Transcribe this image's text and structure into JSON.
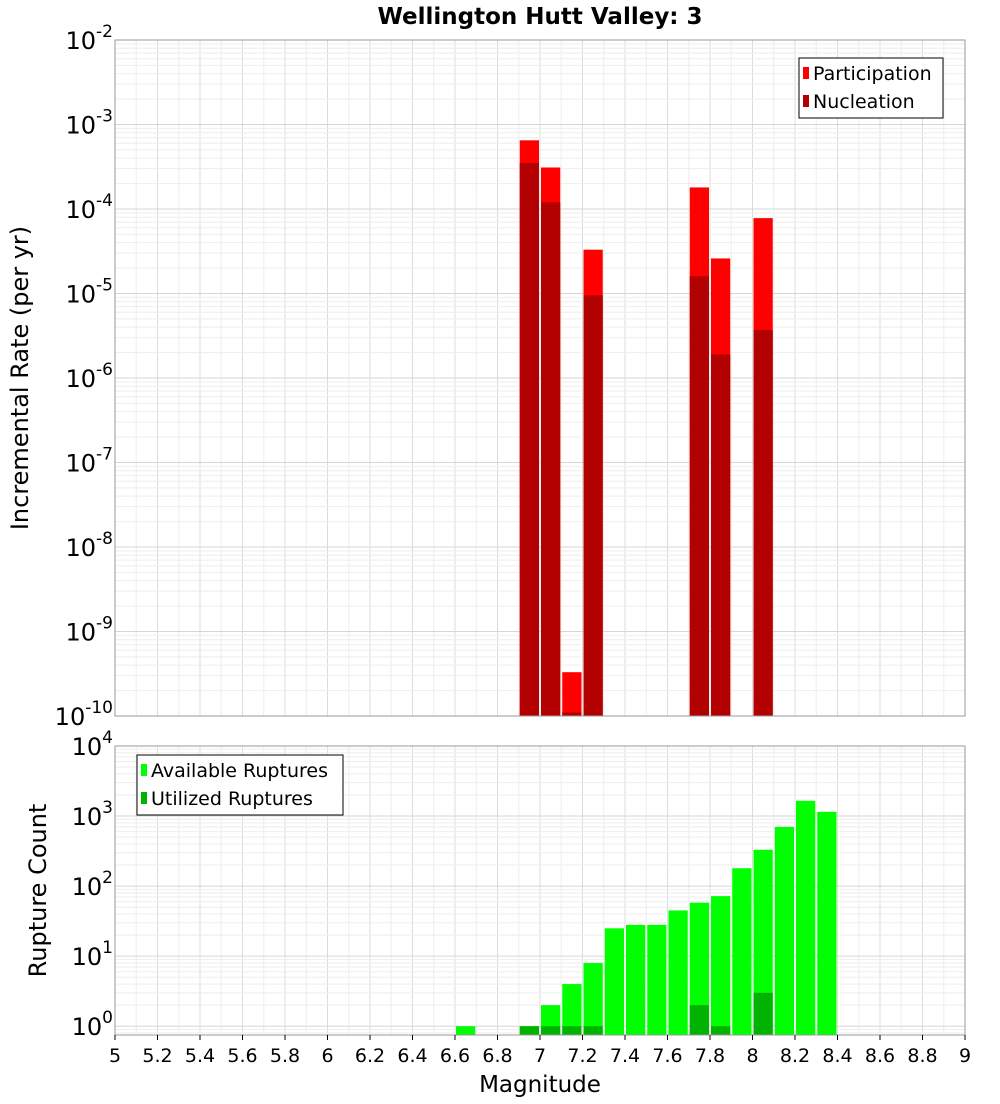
{
  "chart_data": [
    {
      "type": "bar",
      "title": "Wellington Hutt Valley: 3",
      "xlabel": "",
      "ylabel": "Incremental Rate (per yr)",
      "xlim": [
        5,
        9
      ],
      "ylim": [
        1e-10,
        0.01
      ],
      "yscale": "log",
      "grid": true,
      "legend_position": "top-right",
      "series": [
        {
          "name": "Participation",
          "color": "#ff0000",
          "points": [
            {
              "x": 6.95,
              "y": 0.00065
            },
            {
              "x": 7.05,
              "y": 0.00031
            },
            {
              "x": 7.15,
              "y": 3.3e-10
            },
            {
              "x": 7.25,
              "y": 3.3e-05
            },
            {
              "x": 7.75,
              "y": 0.00018
            },
            {
              "x": 7.85,
              "y": 2.6e-05
            },
            {
              "x": 8.05,
              "y": 7.8e-05
            }
          ]
        },
        {
          "name": "Nucleation",
          "color": "#b30000",
          "points": [
            {
              "x": 6.95,
              "y": 0.00035
            },
            {
              "x": 7.05,
              "y": 0.00012
            },
            {
              "x": 7.15,
              "y": 1.1e-10
            },
            {
              "x": 7.25,
              "y": 9.5e-06
            },
            {
              "x": 7.75,
              "y": 1.6e-05
            },
            {
              "x": 7.85,
              "y": 1.9e-06
            },
            {
              "x": 8.05,
              "y": 3.7e-06
            }
          ]
        }
      ]
    },
    {
      "type": "bar",
      "title": "",
      "xlabel": "Magnitude",
      "ylabel": "Rupture Count",
      "xlim": [
        5,
        9
      ],
      "ylim": [
        0.75,
        10000
      ],
      "yscale": "log",
      "grid": true,
      "legend_position": "top-left",
      "x_ticks": [
        "5",
        "5.2",
        "5.4",
        "5.6",
        "5.8",
        "6",
        "6.2",
        "6.4",
        "6.6",
        "6.8",
        "7",
        "7.2",
        "7.4",
        "7.6",
        "7.8",
        "8",
        "8.2",
        "8.4",
        "8.6",
        "8.8",
        "9"
      ],
      "series": [
        {
          "name": "Available Ruptures",
          "color": "#00ff00",
          "points": [
            {
              "x": 6.65,
              "y": 1
            },
            {
              "x": 6.95,
              "y": 1
            },
            {
              "x": 7.05,
              "y": 2
            },
            {
              "x": 7.15,
              "y": 4
            },
            {
              "x": 7.25,
              "y": 8
            },
            {
              "x": 7.35,
              "y": 25
            },
            {
              "x": 7.45,
              "y": 28
            },
            {
              "x": 7.55,
              "y": 28
            },
            {
              "x": 7.65,
              "y": 45
            },
            {
              "x": 7.75,
              "y": 58
            },
            {
              "x": 7.85,
              "y": 72
            },
            {
              "x": 7.95,
              "y": 180
            },
            {
              "x": 8.05,
              "y": 330
            },
            {
              "x": 8.15,
              "y": 700
            },
            {
              "x": 8.25,
              "y": 1650
            },
            {
              "x": 8.35,
              "y": 1150
            }
          ]
        },
        {
          "name": "Utilized Ruptures",
          "color": "#00b300",
          "points": [
            {
              "x": 6.95,
              "y": 1
            },
            {
              "x": 7.05,
              "y": 1
            },
            {
              "x": 7.15,
              "y": 1
            },
            {
              "x": 7.25,
              "y": 1
            },
            {
              "x": 7.75,
              "y": 2
            },
            {
              "x": 7.85,
              "y": 1
            },
            {
              "x": 8.05,
              "y": 3
            }
          ]
        }
      ]
    }
  ]
}
